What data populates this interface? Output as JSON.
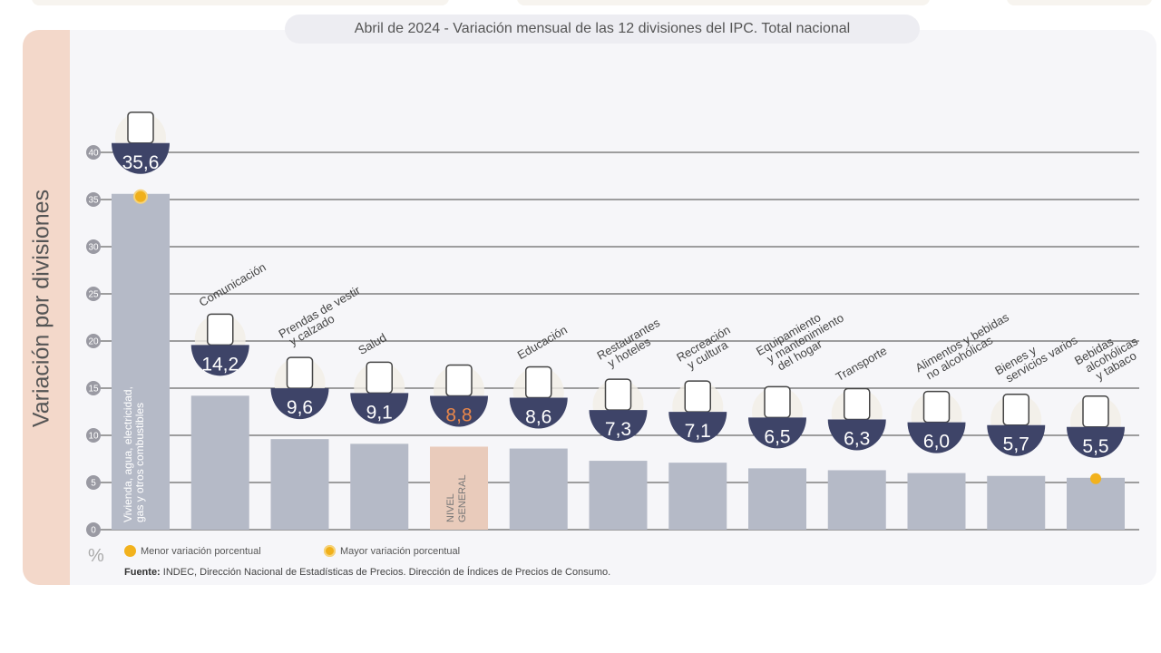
{
  "title": "Abril de 2024 - Variación mensual de las 12 divisiones del IPC. Total nacional",
  "legend": {
    "min": "Menor variación porcentual",
    "max": "Mayor variación porcentual",
    "min_color": "#f2b21d",
    "max_color": "#f0b01b"
  },
  "source_label": "Fuente:",
  "source_text": " INDEC, Dirección Nacional de Estadísticas de Precios. Dirección de Índices de Precios de Consumo.",
  "unit": "%",
  "colors": {
    "bar": "#b5bac7",
    "general_bar": "#e9cbbb",
    "badge": "#3e4468",
    "general_value": "#e8864a",
    "panel": "#f6f6f9",
    "accent_panel": "#f3d8ca"
  },
  "chart_data": {
    "type": "bar",
    "title": "Abril de 2024 - Variación mensual de las 12 divisiones del IPC. Total nacional",
    "ylabel": "Variación por divisiones",
    "yunit": "%",
    "ylim": [
      0,
      40
    ],
    "yticks": [
      "0",
      "5",
      "10",
      "15",
      "20",
      "25",
      "30",
      "35",
      "40"
    ],
    "grid": true,
    "categories": [
      "Vivienda, agua, electricidad,\ngas y otros combustibles",
      "Comunicación",
      "Prendas de vestir\ny calzado",
      "Salud",
      "NIVEL\nGENERAL",
      "Educación",
      "Restaurantes\ny hoteles",
      "Recreación\ny cultura",
      "Equipamiento\ny mantenimiento\ndel hogar",
      "Transporte",
      "Alimentos y bebidas\nno alcohólicas",
      "Bienes y\nservicios varios",
      "Bebidas\nalcohólicas\ny tabaco"
    ],
    "values": [
      35.6,
      14.2,
      9.6,
      9.1,
      8.8,
      8.6,
      7.3,
      7.1,
      6.5,
      6.3,
      6.0,
      5.7,
      5.5
    ],
    "value_labels": [
      "35,6",
      "14,2",
      "9,6",
      "9,1",
      "8,8",
      "8,6",
      "7,3",
      "7,1",
      "6,5",
      "6,3",
      "6,0",
      "5,7",
      "5,5"
    ],
    "icons": [
      "housing-utilities-icon",
      "phone-icon",
      "tshirt-icon",
      "health-cross-icon",
      "basket-icon",
      "notebook-icon",
      "dining-icon",
      "beach-umbrella-icon",
      "washing-machine-icon",
      "bus-sube-icon",
      "food-icon",
      "comb-scissors-icon",
      "wine-icon"
    ],
    "highlight_max": 0,
    "highlight_min": 12,
    "general_index": 4
  }
}
